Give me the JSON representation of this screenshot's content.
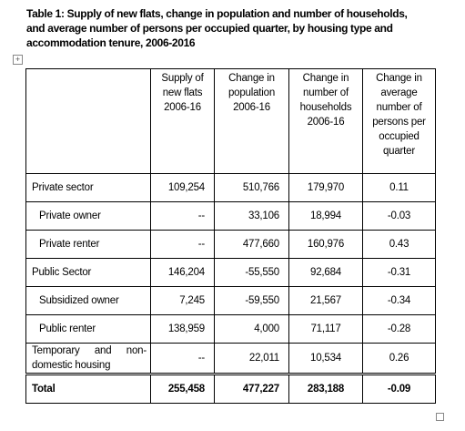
{
  "title": [
    "Table 1: Supply of new flats, change in population and number of households,",
    "and average number of persons per occupied quarter, by housing type and",
    "accommodation tenure, 2006-2016"
  ],
  "table": {
    "header": [
      [],
      [
        "Supply of",
        "new flats",
        "2006-16"
      ],
      [
        "Change in",
        "population",
        "2006-16"
      ],
      [
        "Change in",
        "number of",
        "households",
        "2006-16"
      ],
      [
        "Change in",
        "average",
        "number of",
        "persons per",
        "occupied",
        "quarter"
      ]
    ],
    "rows": [
      [
        "Private sector",
        "109,254",
        "510,766",
        "179,970",
        "0.11"
      ],
      [
        "Private owner",
        "--",
        "33,106",
        "18,994",
        "-0.03"
      ],
      [
        "Private renter",
        "--",
        "477,660",
        "160,976",
        "0.43"
      ],
      [
        "Public Sector",
        "146,204",
        "-55,550",
        "92,684",
        "-0.31"
      ],
      [
        "Subsidized owner",
        "7,245",
        "-59,550",
        "21,567",
        "-0.34"
      ],
      [
        "Public renter",
        "138,959",
        "4,000",
        "71,117",
        "-0.28"
      ],
      [
        "Temporary and non-domestic housing",
        "--",
        "22,011",
        "10,534",
        "0.26"
      ],
      [
        "Total",
        "255,458",
        "477,227",
        "283,188",
        "-0.09"
      ]
    ]
  }
}
